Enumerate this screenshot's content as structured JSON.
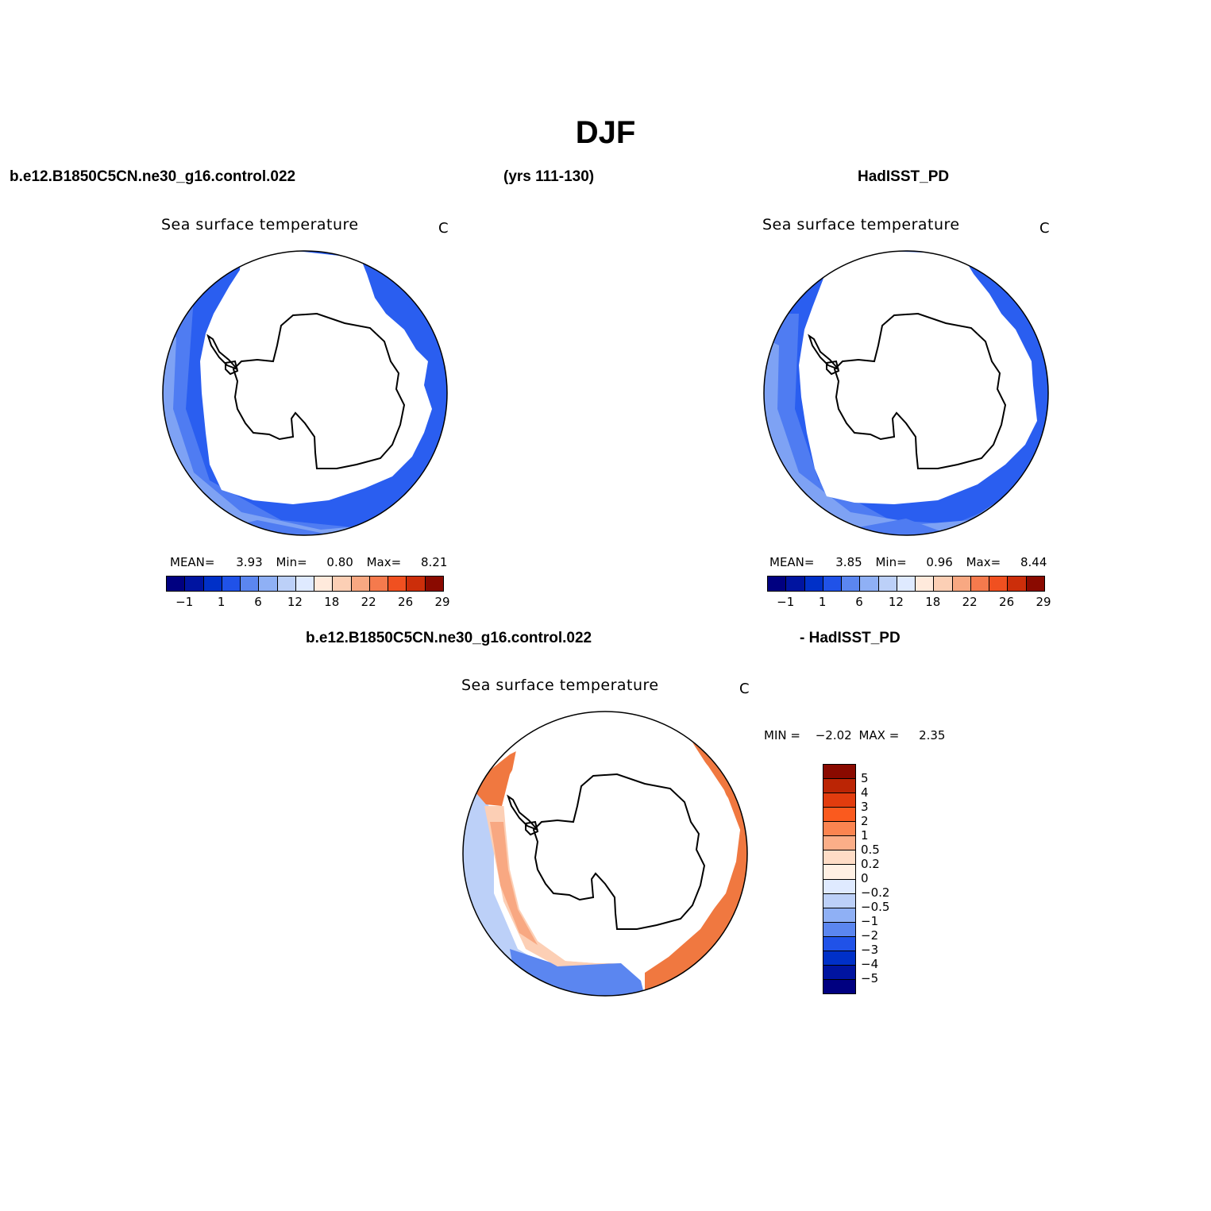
{
  "title": "DJF",
  "header": {
    "left": "b.e12.B1850C5CN.ne30_g16.control.022",
    "center": "(yrs 111-130)",
    "right": "HadISST_PD"
  },
  "diff_header": {
    "left": "b.e12.B1850C5CN.ne30_g16.control.022",
    "right": "- HadISST_PD"
  },
  "panels": [
    {
      "id": "model",
      "variable": "Sea surface temperature",
      "units": "C",
      "stats": {
        "mean_label": "MEAN=",
        "mean": "3.93",
        "min_label": "Min=",
        "min": "0.80",
        "max_label": "Max=",
        "max": "8.21"
      }
    },
    {
      "id": "obs",
      "variable": "Sea surface temperature",
      "units": "C",
      "stats": {
        "mean_label": "MEAN=",
        "mean": "3.85",
        "min_label": "Min=",
        "min": "0.96",
        "max_label": "Max=",
        "max": "8.44"
      }
    },
    {
      "id": "diff",
      "variable": "Sea surface temperature",
      "units": "C",
      "stats": {
        "min_label": "MIN =",
        "min": "−2.02",
        "max_label": "MAX =",
        "max": "2.35"
      }
    }
  ],
  "sst_colorbar": {
    "colors": [
      "#000080",
      "#0014a0",
      "#0030c8",
      "#2052e8",
      "#5b86f0",
      "#8fb0f5",
      "#bcd0f8",
      "#dfeaff",
      "#ffeadc",
      "#fccfb5",
      "#f8a882",
      "#f57a4d",
      "#f05020",
      "#cc2e0a",
      "#8a0a00"
    ],
    "labels": [
      "−1",
      "1",
      "6",
      "12",
      "18",
      "22",
      "26",
      "29"
    ]
  },
  "diff_colorbar": {
    "colors": [
      "#8a0a00",
      "#bb2505",
      "#e23c0e",
      "#fa5a1e",
      "#fb8450",
      "#fbae88",
      "#fedcc6",
      "#fff0e4",
      "#dfeaff",
      "#bcd0f8",
      "#8fb0f5",
      "#5b86f0",
      "#2052e8",
      "#0030c8",
      "#0014a0",
      "#000080"
    ],
    "labels": [
      "5",
      "4",
      "3",
      "2",
      "1",
      "0.5",
      "0.2",
      "0",
      "−0.2",
      "−0.5",
      "−1",
      "−2",
      "−3",
      "−4",
      "−5"
    ]
  },
  "colors": {
    "ocean_dark": "#2a5ef0",
    "ocean_mid": "#4f7cf2",
    "ocean_light": "#7ea2f4",
    "warm_dark": "#f07840",
    "warm_mid": "#f8a882",
    "warm_light": "#fccfb5",
    "cool_light": "#bcd0f8"
  }
}
